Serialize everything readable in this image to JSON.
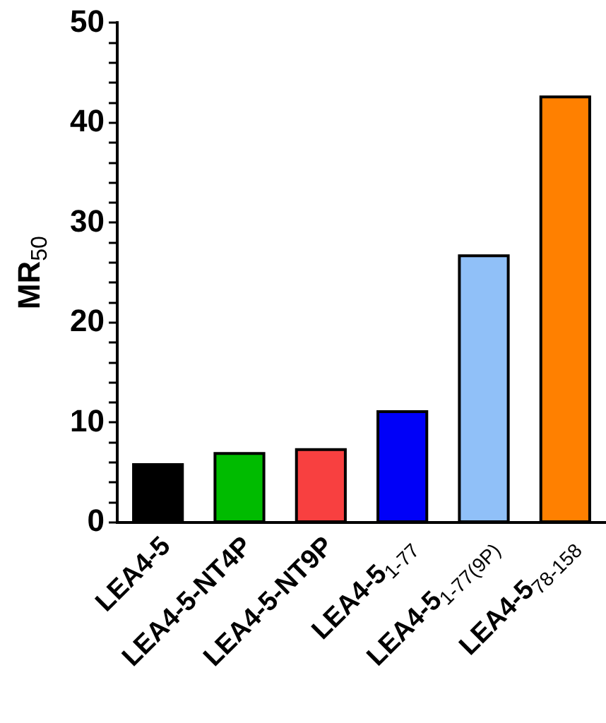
{
  "chart_data": {
    "type": "bar",
    "ylabel": "MR$_{50}$",
    "categories": [
      "LEA4-5",
      "LEA4-5-NT4P",
      "LEA4-5-NT9P",
      "LEA4-5$_{1-77}$",
      "LEA4-5$_{1-77(9P)}$",
      "LEA4-5$_{78-158}$"
    ],
    "values": [
      5.8,
      6.9,
      7.3,
      11.1,
      26.7,
      42.6
    ],
    "colors": [
      "#000000",
      "#00bb00",
      "#f84040",
      "#0000f8",
      "#90c0f8",
      "#ff8000"
    ],
    "ylim": [
      0,
      50
    ],
    "yticks": [
      0,
      {
        "value": 2,
        "label": null
      },
      {
        "value": 4,
        "label": null
      },
      {
        "value": 6,
        "label": null
      },
      {
        "value": 8,
        "label": null
      },
      10,
      {
        "value": 12,
        "label": null
      },
      {
        "value": 14,
        "label": null
      },
      {
        "value": 16,
        "label": null
      },
      {
        "value": 18,
        "label": null
      },
      20,
      {
        "value": 22,
        "label": null
      },
      {
        "value": 24,
        "label": null
      },
      {
        "value": 26,
        "label": null
      },
      {
        "value": 28,
        "label": null
      },
      30,
      {
        "value": 32,
        "label": null
      },
      {
        "value": 34,
        "label": null
      },
      {
        "value": 36,
        "label": null
      },
      {
        "value": 38,
        "label": null
      },
      40,
      {
        "value": 42,
        "label": null
      },
      {
        "value": 44,
        "label": null
      },
      {
        "value": 46,
        "label": null
      },
      {
        "value": 48,
        "label": null
      },
      50
    ],
    "grid": false,
    "legend": false
  }
}
